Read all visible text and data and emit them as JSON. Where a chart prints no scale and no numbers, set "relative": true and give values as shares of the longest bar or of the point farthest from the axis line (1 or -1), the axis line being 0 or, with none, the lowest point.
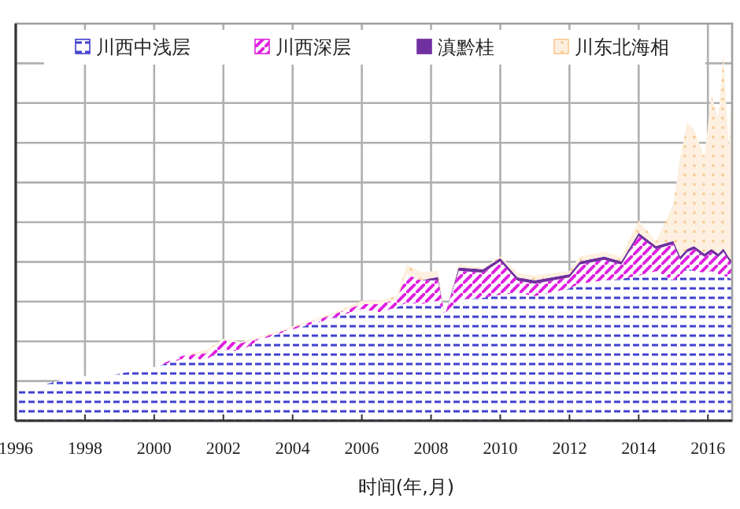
{
  "chart_data": {
    "type": "area",
    "stacked": true,
    "relative": true,
    "xlabel": "时间(年,月)",
    "x": [
      1996,
      1997,
      1997.8,
      1998.5,
      1999,
      2000,
      2000.8,
      2001.5,
      2002,
      2002.5,
      2003,
      2004,
      2005,
      2006,
      2006.5,
      2007,
      2007.3,
      2007.7,
      2008.2,
      2008.4,
      2008.8,
      2009.5,
      2010,
      2010.5,
      2011,
      2012,
      2012.3,
      2013,
      2013.5,
      2014,
      2014.5,
      2015,
      2015.2,
      2015.4,
      2015.6,
      2015.9,
      2016.1,
      2016.3,
      2016.45,
      2016.6,
      2016.7
    ],
    "xlim": [
      1996,
      2016.7
    ],
    "xticks": [
      1996,
      1998,
      2000,
      2002,
      2004,
      2006,
      2008,
      2010,
      2012,
      2014,
      2016
    ],
    "grid": true,
    "legend": "top",
    "series": [
      {
        "name": "川西中浅层",
        "color": "#4040d0",
        "values": [
          0.086,
          0.103,
          0.125,
          0.116,
          0.129,
          0.147,
          0.168,
          0.168,
          0.194,
          0.19,
          0.22,
          0.25,
          0.276,
          0.306,
          0.297,
          0.31,
          0.323,
          0.319,
          0.328,
          0.289,
          0.332,
          0.336,
          0.345,
          0.349,
          0.341,
          0.362,
          0.375,
          0.384,
          0.388,
          0.397,
          0.409,
          0.384,
          0.397,
          0.418,
          0.409,
          0.405,
          0.409,
          0.401,
          0.397,
          0.392,
          0.384
        ]
      },
      {
        "name": "川西深层",
        "color": "#e020e0",
        "values": [
          0,
          0,
          0,
          0,
          0,
          0,
          0.009,
          0.017,
          0.026,
          0.022,
          0.004,
          0.004,
          0.009,
          0.013,
          0.022,
          0.022,
          0.078,
          0.065,
          0.056,
          0,
          0.078,
          0.069,
          0.091,
          0.034,
          0.034,
          0.03,
          0.052,
          0.056,
          0.039,
          0.108,
          0.06,
          0.099,
          0.043,
          0.043,
          0.06,
          0.043,
          0.052,
          0.047,
          0.065,
          0.047,
          0.043
        ]
      },
      {
        "name": "滇黔桂",
        "color": "#7030a0",
        "values": [
          0,
          0,
          0,
          0,
          0,
          0,
          0,
          0,
          0,
          0,
          0,
          0,
          0,
          0,
          0,
          0,
          0,
          0,
          0.009,
          0,
          0.009,
          0.009,
          0.009,
          0.009,
          0.009,
          0.009,
          0.009,
          0.009,
          0.009,
          0.009,
          0.009,
          0.009,
          0.009,
          0.009,
          0.009,
          0.009,
          0.009,
          0.009,
          0.009,
          0.009,
          0.009
        ]
      },
      {
        "name": "川东北海相",
        "color": "#f8c890",
        "values": [
          0,
          0,
          0,
          0,
          0,
          0,
          0,
          0.009,
          0.004,
          0.004,
          0.004,
          0.004,
          0.004,
          0.009,
          0.009,
          0.009,
          0.026,
          0.022,
          0.017,
          0,
          0.009,
          0.004,
          0.004,
          0.013,
          0.013,
          0.009,
          0.013,
          0.013,
          0.013,
          0.034,
          0.013,
          0.099,
          0.272,
          0.345,
          0.319,
          0.263,
          0.422,
          0.371,
          0.529,
          0.302,
          0.466
        ]
      }
    ]
  }
}
